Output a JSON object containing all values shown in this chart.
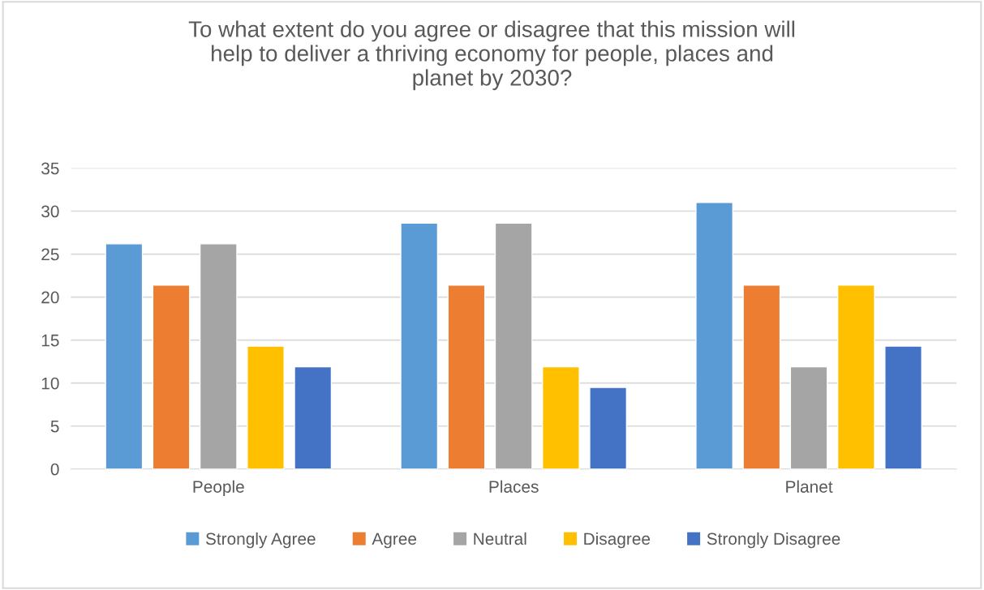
{
  "chart_data": {
    "type": "bar",
    "title": "To what extent do you agree or disagree that this mission will\nhelp to deliver a thriving economy for people, places and\nplanet by 2030?",
    "categories": [
      "People",
      "Places",
      "Planet"
    ],
    "series": [
      {
        "name": "Strongly Agree",
        "color": "#5b9bd5",
        "values": [
          26.2,
          28.6,
          31.0
        ]
      },
      {
        "name": "Agree",
        "color": "#ed7d31",
        "values": [
          21.4,
          21.4,
          21.4
        ]
      },
      {
        "name": "Neutral",
        "color": "#a5a5a5",
        "values": [
          26.2,
          28.6,
          11.9
        ]
      },
      {
        "name": "Disagree",
        "color": "#ffc000",
        "values": [
          14.3,
          11.9,
          21.4
        ]
      },
      {
        "name": "Strongly Disagree",
        "color": "#4472c4",
        "values": [
          11.9,
          9.5,
          14.3
        ]
      }
    ],
    "ylim": [
      0,
      35
    ],
    "yticks": [
      0,
      5,
      10,
      15,
      20,
      25,
      30,
      35
    ],
    "grid": "y",
    "legend": "bottom"
  }
}
